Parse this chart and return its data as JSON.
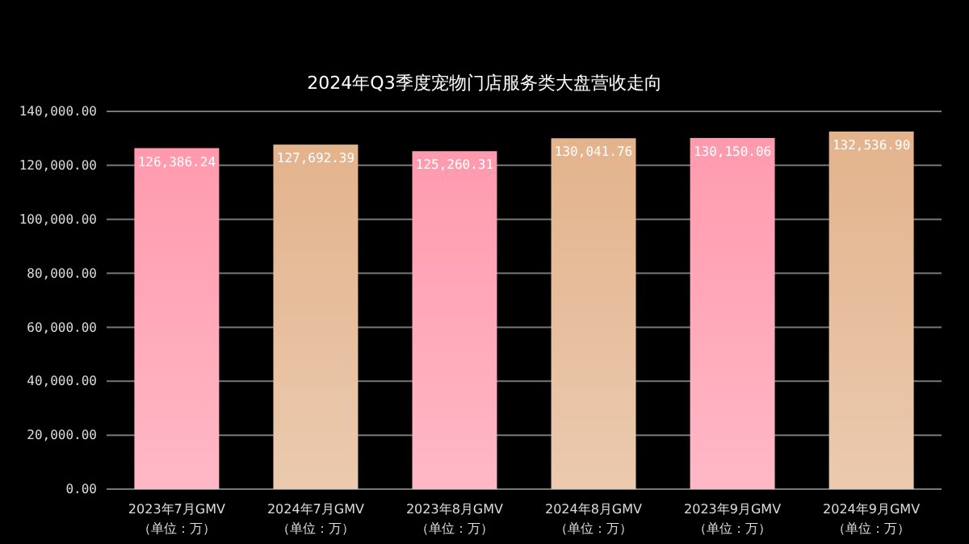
{
  "chart_data": {
    "type": "bar",
    "title": "2024年Q3季度宠物门店服务类大盘营收走向",
    "categories": [
      "2023年7月GMV\n（单位：万）",
      "2024年7月GMV\n（单位：万）",
      "2023年8月GMV\n（单位：万）",
      "2024年8月GMV\n（单位：万）",
      "2023年9月GMV\n（单位：万）",
      "2024年9月GMV\n（单位：万）"
    ],
    "values": [
      126386.24,
      127692.39,
      125260.31,
      130041.76,
      130150.06,
      132536.9
    ],
    "value_labels": [
      "126,386.24",
      "127,692.39",
      "125,260.31",
      "130,041.76",
      "130,150.06",
      "132,536.90"
    ],
    "colors": [
      "#ff9aae",
      "#e3b38c",
      "#ff9aae",
      "#e3b38c",
      "#ff9aae",
      "#e3b38c"
    ],
    "ylim": [
      0,
      140000
    ],
    "yticks": [
      {
        "value": 0,
        "label": "0.00"
      },
      {
        "value": 20000,
        "label": "20,000.00"
      },
      {
        "value": 40000,
        "label": "40,000.00"
      },
      {
        "value": 60000,
        "label": "60,000.00"
      },
      {
        "value": 80000,
        "label": "80,000.00"
      },
      {
        "value": 100000,
        "label": "100,000.00"
      },
      {
        "value": 120000,
        "label": "120,000.00"
      },
      {
        "value": 140000,
        "label": "140,000.00"
      }
    ],
    "grid": "y"
  }
}
